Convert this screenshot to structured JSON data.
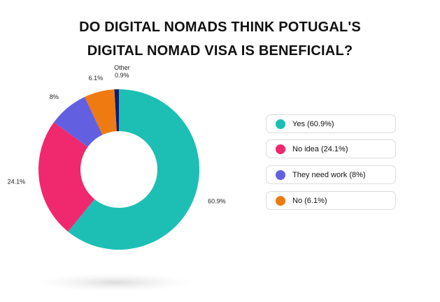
{
  "title_line1": "DO DIGITAL NOMADS THINK POTUGAL'S",
  "title_line2": "DIGITAL NOMAD VISA IS BENEFICIAL?",
  "chart_data": {
    "type": "pie",
    "title": "DO DIGITAL NOMADS THINK POTUGAL'S DIGITAL NOMAD VISA IS BENEFICIAL?",
    "categories": [
      "Yes",
      "No idea",
      "They need work",
      "No",
      "Other"
    ],
    "values": [
      60.9,
      24.1,
      8,
      6.1,
      0.9
    ],
    "data_labels": [
      "60.9%",
      "24.1%",
      "8%",
      "6.1%",
      "0.9%"
    ],
    "colors": [
      "#1dbfb4",
      "#f0286e",
      "#6260e0",
      "#f07a12",
      "#0e1c6e"
    ],
    "donut": true,
    "legend_position": "right",
    "legend": [
      {
        "label": "Yes (60.9%)",
        "color": "#1dbfb4"
      },
      {
        "label": "No idea (24.1%)",
        "color": "#f0286e"
      },
      {
        "label": "They need work (8%)",
        "color": "#6260e0"
      },
      {
        "label": "No (6.1%)",
        "color": "#f07a12"
      }
    ],
    "other_label": "Other"
  }
}
